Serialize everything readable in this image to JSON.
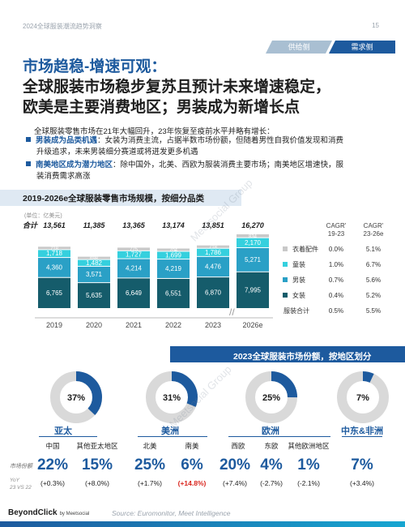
{
  "header": {
    "doc_title": "2024全球服装潮流趋势洞察",
    "page_number": "15"
  },
  "tabs": [
    {
      "label": "供给侧",
      "active": false
    },
    {
      "label": "需求侧",
      "active": true
    }
  ],
  "title": {
    "line1": "市场趋稳-增速可观：",
    "line2": "全球服装市场稳步复苏且预计未来增速稳定，",
    "line3": "欧美是主要消费地区；男装成为新增长点"
  },
  "intro": "全球服装零售市场在21年大幅回升，23年恢复至疫前水平并略有增长：",
  "bullets": [
    {
      "strong": "男装成为品类机遇",
      "text": "：女装为消费主流，占据半数市场份额，但随着男性自我价值发现和消费",
      "cont": "升级追求，未来男装细分赛道或将迸发更多机遇"
    },
    {
      "strong": "南美地区成为潜力地区",
      "text": "：除中国外，北美、西欧为服装消费主要市场；南美地区增速快，服",
      "cont": "装消费需求高涨"
    }
  ],
  "chart_data": [
    {
      "type": "bar",
      "title": "2019-2026e全球服装零售市场规模，按细分品类",
      "unit": "(单位：亿美元)",
      "total_label": "合计",
      "categories": [
        "2019",
        "2020",
        "2021",
        "2022",
        "2023",
        "2026e"
      ],
      "totals": [
        13561,
        11385,
        13365,
        13174,
        13851,
        16270
      ],
      "series": [
        {
          "name": "女装",
          "color": "#155c6b",
          "values": [
            6765,
            5635,
            6649,
            6551,
            6870,
            7995
          ]
        },
        {
          "name": "男装",
          "color": "#2aa0c6",
          "values": [
            4360,
            3571,
            4214,
            4219,
            4476,
            5271
          ]
        },
        {
          "name": "童装",
          "color": "#35d0de",
          "values": [
            1718,
            1482,
            1727,
            1699,
            1786,
            2170
          ]
        },
        {
          "name": "衣着配件",
          "color": "#c9c9c9",
          "values": [
            718,
            698,
            775,
            704,
            718,
            834
          ]
        }
      ],
      "value_labels": [
        [
          "6,765",
          "5,635",
          "6,649",
          "6,551",
          "6,870",
          "7,995"
        ],
        [
          "4,360",
          "3,571",
          "4,214",
          "4,219",
          "4,476",
          "5,271"
        ],
        [
          "1,718",
          "1,482",
          "1,727",
          "1,699",
          "1,786",
          "2,170"
        ],
        [
          "718",
          "698",
          "775",
          "704",
          "718",
          "834"
        ]
      ],
      "total_labels": [
        "13,561",
        "11,385",
        "13,365",
        "13,174",
        "13,851",
        "16,270"
      ],
      "cagr_headers": [
        {
          "label": "CAGR'",
          "period": "19-23"
        },
        {
          "label": "CAGR'",
          "period": "23-26e"
        }
      ],
      "cagr_rows": [
        {
          "name": "衣着配件",
          "color": "#c9c9c9",
          "v1": "0.0%",
          "v2": "5.1%"
        },
        {
          "name": "童装",
          "color": "#35d0de",
          "v1": "1.0%",
          "v2": "6.7%"
        },
        {
          "name": "男装",
          "color": "#2aa0c6",
          "v1": "0.7%",
          "v2": "5.6%"
        },
        {
          "name": "女装",
          "color": "#155c6b",
          "v1": "0.4%",
          "v2": "5.2%"
        },
        {
          "name": "服装合计",
          "color": null,
          "v1": "0.5%",
          "v2": "5.5%"
        }
      ]
    },
    {
      "type": "pie",
      "title": "2023全球服装市场份额，按地区划分",
      "regions": [
        {
          "name": "亚太",
          "share": 37,
          "label": "37%",
          "subregions": [
            {
              "name": "中国",
              "share": "22%",
              "yoy": "(+0.3%)",
              "highlight": false
            },
            {
              "name": "其他亚太地区",
              "share": "15%",
              "yoy": "(+8.0%)",
              "highlight": false
            }
          ]
        },
        {
          "name": "美洲",
          "share": 31,
          "label": "31%",
          "subregions": [
            {
              "name": "北美",
              "share": "25%",
              "yoy": "(+1.7%)",
              "highlight": false
            },
            {
              "name": "南美",
              "share": "6%",
              "yoy": "(+14.8%)",
              "highlight": true
            }
          ]
        },
        {
          "name": "欧洲",
          "share": 25,
          "label": "25%",
          "subregions": [
            {
              "name": "西欧",
              "share": "20%",
              "yoy": "(+7.4%)",
              "highlight": false
            },
            {
              "name": "东欧",
              "share": "4%",
              "yoy": "(-2.7%)",
              "highlight": false
            },
            {
              "name": "其他欧洲地区",
              "share": "1%",
              "yoy": "(-2.1%)",
              "highlight": false
            }
          ]
        },
        {
          "name": "中东&非洲",
          "share": 7,
          "label": "7%",
          "subregions": [
            {
              "name": "",
              "share": "7%",
              "yoy": "(+3.4%)",
              "highlight": false
            }
          ]
        }
      ],
      "share_axis_label": "市场份额",
      "yoy_axis_label": "YoY",
      "yoy_axis_period": "23 VS 22"
    }
  ],
  "colors": {
    "primary": "#1d5a9e",
    "ring_fill": "#1d5a9e",
    "ring_track": "#d9d9d9",
    "highlight": "#d9251d"
  },
  "footer": {
    "logo": "BeyondClick",
    "logo_sub": "by Meetsocial",
    "source": "Source: Euromonitor, Meet Intelligence"
  },
  "watermark": "Meetsocial Group"
}
